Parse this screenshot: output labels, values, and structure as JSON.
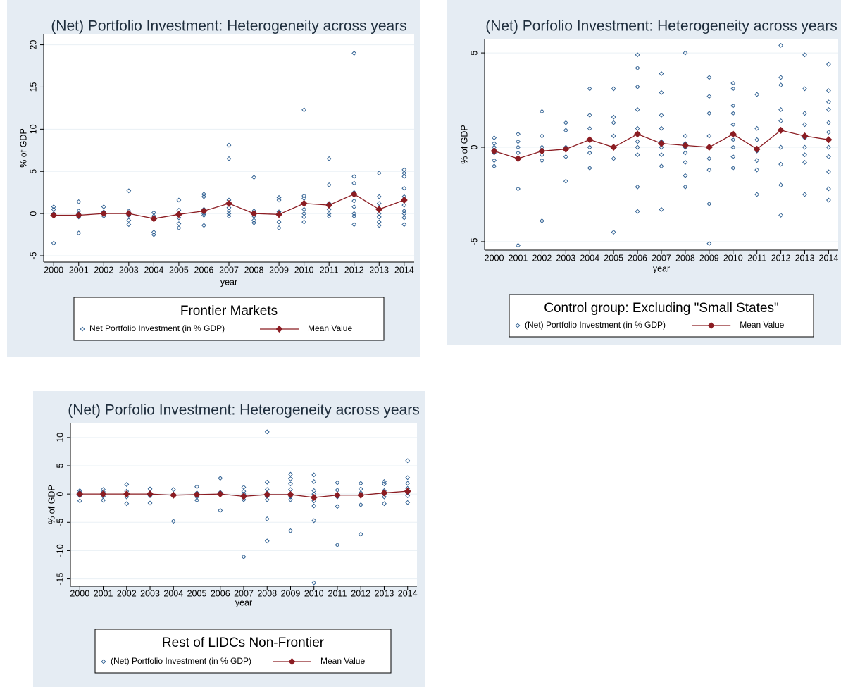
{
  "chart_data": [
    {
      "type": "scatter",
      "title": "(Net) Portfolio Investment: Heterogeneity across years",
      "xlabel": "year",
      "ylabel": "% of GDP",
      "legend_title": "Frontier Markets",
      "xlim": [
        1999.6,
        2014.4
      ],
      "xticks": [
        2000,
        2001,
        2002,
        2003,
        2004,
        2005,
        2006,
        2007,
        2008,
        2009,
        2010,
        2011,
        2012,
        2013,
        2014
      ],
      "ylim": [
        -5.75,
        21.3
      ],
      "yticks": [
        -5,
        0,
        5,
        10,
        15,
        20
      ],
      "grid": true,
      "series": [
        {
          "name": "Net Portfolio Investment (in % GDP)",
          "type": "scatter",
          "color": "#2a5c8f",
          "x": [
            2000,
            2000,
            2000,
            2000,
            2000,
            2001,
            2001,
            2001,
            2001,
            2001,
            2002,
            2002,
            2002,
            2002,
            2003,
            2003,
            2003,
            2003,
            2003,
            2004,
            2004,
            2004,
            2004,
            2005,
            2005,
            2005,
            2005,
            2005,
            2005,
            2006,
            2006,
            2006,
            2006,
            2006,
            2006,
            2007,
            2007,
            2007,
            2007,
            2007,
            2007,
            2007,
            2007,
            2008,
            2008,
            2008,
            2008,
            2008,
            2008,
            2009,
            2009,
            2009,
            2009,
            2009,
            2009,
            2010,
            2010,
            2010,
            2010,
            2010,
            2010,
            2010,
            2010,
            2011,
            2011,
            2011,
            2011,
            2011,
            2011,
            2012,
            2012,
            2012,
            2012,
            2012,
            2012,
            2012,
            2012,
            2012,
            2013,
            2013,
            2013,
            2013,
            2013,
            2013,
            2013,
            2013,
            2014,
            2014,
            2014,
            2014,
            2014,
            2014,
            2014,
            2014,
            2014,
            2014
          ],
          "values": [
            0.8,
            0.5,
            0,
            -0.3,
            -3.5,
            1.4,
            0.3,
            0,
            -0.4,
            -2.3,
            0.8,
            0.2,
            0,
            -0.3,
            2.7,
            0.3,
            -0.2,
            -0.8,
            -1.3,
            0.1,
            -0.3,
            -2.2,
            -2.5,
            1.6,
            0.4,
            0,
            -0.5,
            -1.2,
            -1.7,
            2.3,
            2.0,
            0.5,
            0,
            -0.2,
            -1.4,
            8.1,
            6.5,
            1.6,
            1.2,
            0.7,
            0.3,
            0,
            -0.3,
            4.3,
            0.3,
            0,
            -0.3,
            -0.8,
            -1.1,
            1.9,
            1.6,
            0.2,
            -0.2,
            -1.0,
            -1.7,
            12.3,
            2.1,
            1.8,
            1.2,
            0.5,
            0,
            -0.4,
            -1.0,
            6.5,
            3.4,
            1.2,
            0.5,
            0,
            -0.3,
            19.0,
            4.4,
            3.6,
            2.5,
            1.5,
            0.8,
            0,
            -0.3,
            -1.3,
            4.8,
            2.0,
            1.2,
            0.5,
            0,
            -0.4,
            -1.0,
            -1.4,
            5.2,
            4.8,
            4.4,
            3.0,
            2.0,
            1.0,
            0.3,
            0,
            -0.5,
            -1.3
          ]
        },
        {
          "name": "Mean Value",
          "type": "line",
          "color": "#8b1c22",
          "x": [
            2000,
            2001,
            2002,
            2003,
            2004,
            2005,
            2006,
            2007,
            2008,
            2009,
            2010,
            2011,
            2012,
            2013,
            2014
          ],
          "values": [
            -0.2,
            -0.2,
            0.0,
            0.0,
            -0.6,
            -0.1,
            0.3,
            1.2,
            0.0,
            -0.1,
            1.2,
            1.0,
            2.3,
            0.5,
            1.6
          ]
        }
      ]
    },
    {
      "type": "scatter",
      "title": "(Net) Porfolio Investment: Heterogeneity across years",
      "xlabel": "year",
      "ylabel": "% of GDP",
      "legend_title": "Control group: Excluding \"Small States\"",
      "xlim": [
        1999.6,
        2014.4
      ],
      "xticks": [
        2000,
        2001,
        2002,
        2003,
        2004,
        2005,
        2006,
        2007,
        2008,
        2009,
        2010,
        2011,
        2012,
        2013,
        2014
      ],
      "ylim": [
        -5.45,
        5.75
      ],
      "yticks": [
        -5,
        0,
        5
      ],
      "grid": true,
      "series": [
        {
          "name": "(Net) Portfolio Investment (in % GDP)",
          "type": "scatter",
          "color": "#2a5c8f",
          "x": [
            2000,
            2000,
            2000,
            2000,
            2000,
            2000,
            2001,
            2001,
            2001,
            2001,
            2001,
            2001,
            2001,
            2002,
            2002,
            2002,
            2002,
            2002,
            2002,
            2003,
            2003,
            2003,
            2003,
            2003,
            2004,
            2004,
            2004,
            2004,
            2004,
            2004,
            2004,
            2005,
            2005,
            2005,
            2005,
            2005,
            2005,
            2005,
            2006,
            2006,
            2006,
            2006,
            2006,
            2006,
            2006,
            2006,
            2006,
            2006,
            2007,
            2007,
            2007,
            2007,
            2007,
            2007,
            2007,
            2007,
            2007,
            2008,
            2008,
            2008,
            2008,
            2008,
            2008,
            2008,
            2008,
            2009,
            2009,
            2009,
            2009,
            2009,
            2009,
            2009,
            2009,
            2009,
            2010,
            2010,
            2010,
            2010,
            2010,
            2010,
            2010,
            2010,
            2010,
            2011,
            2011,
            2011,
            2011,
            2011,
            2011,
            2011,
            2012,
            2012,
            2012,
            2012,
            2012,
            2012,
            2012,
            2012,
            2012,
            2012,
            2013,
            2013,
            2013,
            2013,
            2013,
            2013,
            2013,
            2013,
            2013,
            2014,
            2014,
            2014,
            2014,
            2014,
            2014,
            2014,
            2014,
            2014,
            2014,
            2014
          ],
          "values": [
            0.5,
            0.2,
            0,
            -0.3,
            -0.7,
            -1.0,
            0.7,
            0.3,
            0,
            -0.3,
            -0.6,
            -2.2,
            -5.2,
            1.9,
            0.6,
            0,
            -0.4,
            -0.7,
            -3.9,
            1.3,
            0.9,
            0,
            -0.5,
            -1.8,
            3.1,
            1.7,
            1.0,
            0.4,
            0,
            -0.3,
            -1.1,
            3.1,
            1.6,
            1.3,
            0.6,
            0,
            -0.6,
            -4.5,
            4.9,
            4.2,
            3.2,
            2.0,
            1.0,
            0.3,
            0,
            -0.4,
            -2.1,
            -3.4,
            3.9,
            2.9,
            1.7,
            1.0,
            0.3,
            0,
            -0.4,
            -1.0,
            -3.3,
            5.0,
            0.6,
            0.2,
            0,
            -0.3,
            -0.8,
            -1.5,
            -2.1,
            3.7,
            2.7,
            1.8,
            0.6,
            0,
            -0.6,
            -1.2,
            -3.0,
            -5.1,
            3.4,
            3.1,
            2.2,
            1.8,
            1.2,
            0.4,
            0,
            -0.5,
            -1.1,
            2.8,
            1.0,
            0.4,
            -0.2,
            -0.7,
            -1.2,
            -2.5,
            5.4,
            3.7,
            3.3,
            2.0,
            1.4,
            0.9,
            0,
            -0.9,
            -2.0,
            -3.6,
            4.9,
            3.1,
            1.8,
            1.2,
            0.5,
            0,
            -0.4,
            -0.8,
            -2.5,
            4.4,
            3.0,
            2.4,
            2.0,
            1.3,
            0.8,
            0,
            -0.5,
            -1.3,
            -2.2,
            -2.8
          ]
        },
        {
          "name": "Mean Value",
          "type": "line",
          "color": "#8b1c22",
          "x": [
            2000,
            2001,
            2002,
            2003,
            2004,
            2005,
            2006,
            2007,
            2008,
            2009,
            2010,
            2011,
            2012,
            2013,
            2014
          ],
          "values": [
            -0.2,
            -0.6,
            -0.2,
            -0.1,
            0.4,
            0.0,
            0.7,
            0.2,
            0.1,
            0.0,
            0.7,
            -0.1,
            0.9,
            0.6,
            0.4
          ]
        }
      ]
    },
    {
      "type": "scatter",
      "title": "(Net) Porfolio Investment: Heterogeneity across years",
      "xlabel": "year",
      "ylabel": "% of GDP",
      "legend_title": "Rest of LIDCs Non-Frontier",
      "xlim": [
        1999.6,
        2014.4
      ],
      "xticks": [
        2000,
        2001,
        2002,
        2003,
        2004,
        2005,
        2006,
        2007,
        2008,
        2009,
        2010,
        2011,
        2012,
        2013,
        2014
      ],
      "ylim": [
        -16.3,
        12.6
      ],
      "yticks": [
        -15,
        -10,
        -5,
        0,
        5,
        10
      ],
      "grid": true,
      "series": [
        {
          "name": "(Net) Portfolio Investment (in % GDP)",
          "type": "scatter",
          "color": "#2a5c8f",
          "x": [
            2000,
            2000,
            2000,
            2000,
            2000,
            2001,
            2001,
            2001,
            2001,
            2001,
            2002,
            2002,
            2002,
            2002,
            2002,
            2003,
            2003,
            2003,
            2003,
            2003,
            2004,
            2004,
            2004,
            2004,
            2005,
            2005,
            2005,
            2005,
            2005,
            2006,
            2006,
            2006,
            2006,
            2007,
            2007,
            2007,
            2007,
            2007,
            2007,
            2008,
            2008,
            2008,
            2008,
            2008,
            2008,
            2008,
            2008,
            2009,
            2009,
            2009,
            2009,
            2009,
            2009,
            2009,
            2009,
            2010,
            2010,
            2010,
            2010,
            2010,
            2010,
            2010,
            2010,
            2010,
            2011,
            2011,
            2011,
            2011,
            2011,
            2011,
            2012,
            2012,
            2012,
            2012,
            2012,
            2012,
            2013,
            2013,
            2013,
            2013,
            2013,
            2013,
            2014,
            2014,
            2014,
            2014,
            2014,
            2014,
            2014
          ],
          "values": [
            0.6,
            0.3,
            0,
            -0.3,
            -1.2,
            0.8,
            0.4,
            0,
            -0.4,
            -1.1,
            1.7,
            0.5,
            0,
            -0.5,
            -1.7,
            0.9,
            0.2,
            0,
            -0.3,
            -1.6,
            0.8,
            0,
            -0.3,
            -4.8,
            1.3,
            0.2,
            0,
            -0.5,
            -1.1,
            2.8,
            0.3,
            0,
            -2.9,
            1.2,
            0.5,
            0,
            -0.6,
            -1.0,
            -11.1,
            11.0,
            2.1,
            0.8,
            0.2,
            -0.4,
            -1.0,
            -4.4,
            -8.3,
            3.5,
            2.7,
            1.8,
            0.8,
            0,
            -0.5,
            -1.0,
            -6.5,
            3.4,
            2.2,
            0.6,
            0,
            -0.6,
            -1.2,
            -2.1,
            -4.7,
            -15.7,
            2.0,
            0.7,
            0,
            -0.5,
            -2.2,
            -9.0,
            1.9,
            0.9,
            0.2,
            -0.3,
            -1.9,
            -7.1,
            2.2,
            1.8,
            0.6,
            0,
            -0.5,
            -1.7,
            5.9,
            2.9,
            1.9,
            1.0,
            0.2,
            -0.3,
            -1.5
          ]
        },
        {
          "name": "Mean Value",
          "type": "line",
          "color": "#8b1c22",
          "x": [
            2000,
            2001,
            2002,
            2003,
            2004,
            2005,
            2006,
            2007,
            2008,
            2009,
            2010,
            2011,
            2012,
            2013,
            2014
          ],
          "values": [
            0,
            0,
            0,
            0,
            -0.2,
            -0.1,
            0,
            -0.4,
            -0.1,
            -0.1,
            -0.6,
            -0.2,
            -0.2,
            0.2,
            0.5
          ]
        }
      ]
    }
  ]
}
